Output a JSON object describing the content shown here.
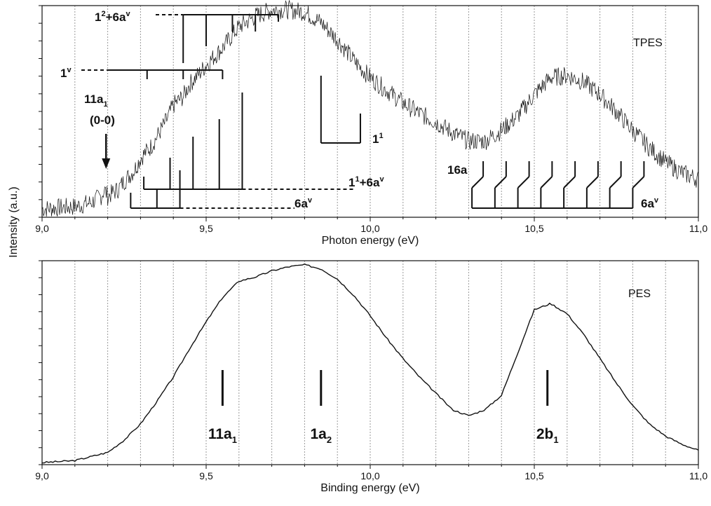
{
  "figure": {
    "ylabel": "Intensity (a.u.)"
  },
  "chart_data": [
    {
      "type": "line",
      "panel": "top",
      "label": "TPES",
      "xlabel": "Photon energy (eV)",
      "xlim": [
        9.0,
        11.0
      ],
      "tick_labels": [
        "9,0",
        "9,5",
        "10,0",
        "10,5",
        "11,0"
      ],
      "grid": "vertical dotted lines every 0.1 eV",
      "series": [
        {
          "x": [
            9.0,
            9.05,
            9.1,
            9.15,
            9.18,
            9.19,
            9.2,
            9.23,
            9.25,
            9.28,
            9.3,
            9.33,
            9.35,
            9.38,
            9.4,
            9.43,
            9.45,
            9.48,
            9.5,
            9.55,
            9.6,
            9.65,
            9.7,
            9.75,
            9.8,
            9.85,
            9.9,
            9.95,
            10.0,
            10.05,
            10.1,
            10.15,
            10.2,
            10.25,
            10.3,
            10.35,
            10.4,
            10.45,
            10.5,
            10.55,
            10.6,
            10.65,
            10.7,
            10.75,
            10.8,
            10.85,
            10.9,
            10.95,
            11.0
          ],
          "y": [
            0.04,
            0.045,
            0.05,
            0.07,
            0.1,
            0.13,
            0.1,
            0.13,
            0.17,
            0.22,
            0.28,
            0.33,
            0.38,
            0.46,
            0.53,
            0.57,
            0.63,
            0.68,
            0.72,
            0.8,
            0.9,
            0.95,
            0.98,
            0.98,
            0.97,
            0.92,
            0.84,
            0.74,
            0.66,
            0.6,
            0.54,
            0.49,
            0.45,
            0.4,
            0.36,
            0.36,
            0.41,
            0.48,
            0.58,
            0.66,
            0.67,
            0.64,
            0.58,
            0.5,
            0.41,
            0.33,
            0.26,
            0.21,
            0.18
          ]
        }
      ],
      "annotations": [
        {
          "text": "1",
          "sup": "2",
          "tail": "+6a",
          "tail_sup": "v"
        },
        {
          "text": "1",
          "sup": "v"
        },
        {
          "text": "11a",
          "sub": "1"
        },
        {
          "text": "(0-0)"
        },
        {
          "text": "1",
          "sup": "1"
        },
        {
          "text": "1",
          "sup": "1",
          "tail": "+6a",
          "tail_sup": "v"
        },
        {
          "text": "6a",
          "sup": "v"
        },
        {
          "text": "16a"
        },
        {
          "text": "6a",
          "sup": "v"
        }
      ],
      "progressions": {
        "1_squared_plus_6a": [
          9.43,
          9.5,
          9.58,
          9.65,
          9.72
        ],
        "1_v": [
          9.2,
          9.32,
          9.43,
          9.55
        ],
        "1_1": [
          9.85,
          9.97
        ],
        "1_1_plus_6a": [
          9.31,
          9.39,
          9.46,
          9.54,
          9.61
        ],
        "6a": [
          9.27,
          9.35,
          9.42
        ],
        "16a_6a": [
          10.31,
          10.38,
          10.45,
          10.52,
          10.59,
          10.66,
          10.73,
          10.8
        ]
      }
    },
    {
      "type": "line",
      "panel": "bottom",
      "label": "PES",
      "xlabel": "Binding energy (eV)",
      "xlim": [
        9.0,
        11.0
      ],
      "tick_labels": [
        "9,0",
        "9,5",
        "10,0",
        "10,5",
        "11,0"
      ],
      "grid": "vertical dotted lines every 0.1 eV",
      "series": [
        {
          "x": [
            9.0,
            9.1,
            9.15,
            9.2,
            9.25,
            9.3,
            9.35,
            9.4,
            9.45,
            9.5,
            9.55,
            9.6,
            9.65,
            9.7,
            9.75,
            9.8,
            9.85,
            9.9,
            9.95,
            10.0,
            10.05,
            10.1,
            10.15,
            10.2,
            10.25,
            10.3,
            10.35,
            10.4,
            10.45,
            10.5,
            10.55,
            10.6,
            10.65,
            10.7,
            10.75,
            10.8,
            10.85,
            10.9,
            10.95,
            11.0
          ],
          "y": [
            0.01,
            0.02,
            0.04,
            0.06,
            0.12,
            0.2,
            0.31,
            0.43,
            0.57,
            0.7,
            0.82,
            0.9,
            0.92,
            0.95,
            0.97,
            0.98,
            0.96,
            0.91,
            0.83,
            0.73,
            0.62,
            0.52,
            0.43,
            0.35,
            0.27,
            0.24,
            0.27,
            0.34,
            0.55,
            0.76,
            0.79,
            0.74,
            0.64,
            0.52,
            0.4,
            0.29,
            0.2,
            0.14,
            0.1,
            0.07
          ]
        }
      ],
      "annotations": [
        {
          "text": "11a",
          "sub": "1",
          "x": 9.55
        },
        {
          "text": "1a",
          "sub": "2",
          "x": 9.85
        },
        {
          "text": "2b",
          "sub": "1",
          "x": 10.54
        }
      ]
    }
  ]
}
